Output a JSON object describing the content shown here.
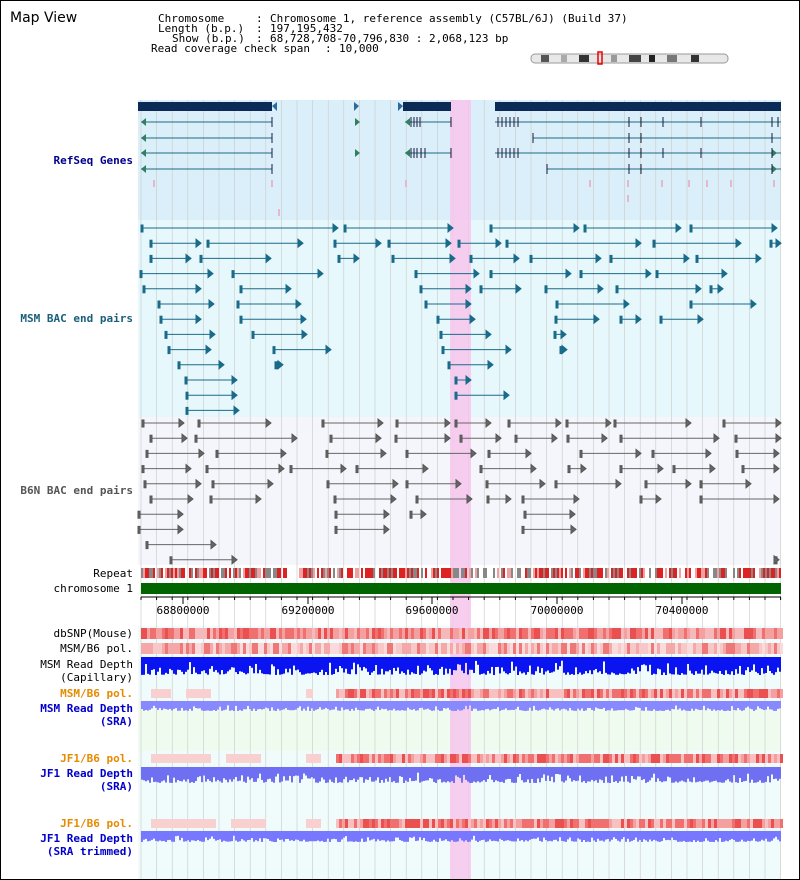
{
  "header": {
    "title": "Map View",
    "chromosome_key": "Chromosome",
    "chromosome_val": "Chromosome 1, reference assembly (C57BL/6J) (Build 37)",
    "length_key": "Length (b.p.)",
    "length_val": "197,195,432",
    "show_key": "Show (b.p.)",
    "show_val": "68,728,708-70,796,830 : 2,068,123 bp",
    "span_key": "Read coverage check span",
    "span_val": "10,000"
  },
  "tracks": {
    "refseq": "RefSeq Genes",
    "msm_bac": "MSM BAC end pairs",
    "b6n_bac": "B6N BAC end pairs",
    "repeat": "Repeat",
    "chromosome": "chromosome 1",
    "dbsnp": "dbSNP(Mouse)",
    "msm_b6_pol_1": "MSM/B6 pol.",
    "msm_depth_cap_1": "MSM Read Depth",
    "msm_depth_cap_2": "(Capillary)",
    "msm_b6_pol_2": "MSM/B6 pol.",
    "msm_depth_sra_1": "MSM Read Depth",
    "msm_depth_sra_2": "(SRA)",
    "jf1_b6_pol_1": "JF1/B6 pol.",
    "jf1_depth_sra_1": "JF1 Read Depth",
    "jf1_depth_sra_2": "(SRA)",
    "jf1_b6_pol_2": "JF1/B6 pol.",
    "jf1_depth_trim_1": "JF1 Read Depth",
    "jf1_depth_trim_2": "(SRA trimmed)"
  },
  "axis": {
    "ticks": [
      "68800000",
      "69200000",
      "69600000",
      "70000000",
      "70400000"
    ]
  },
  "colors": {
    "refseq_label": "#00008b",
    "msm_label": "#1a5f7a",
    "b6n_label": "#555555",
    "pol_label_orange": "#e68a00",
    "depth_label_blue": "#0000cc",
    "chromosome_bar": "#006400",
    "highlight": "#f7c6ec",
    "depth_dark": "#0000ff",
    "depth_light": "#7777ff",
    "snp": "#f07070"
  }
}
